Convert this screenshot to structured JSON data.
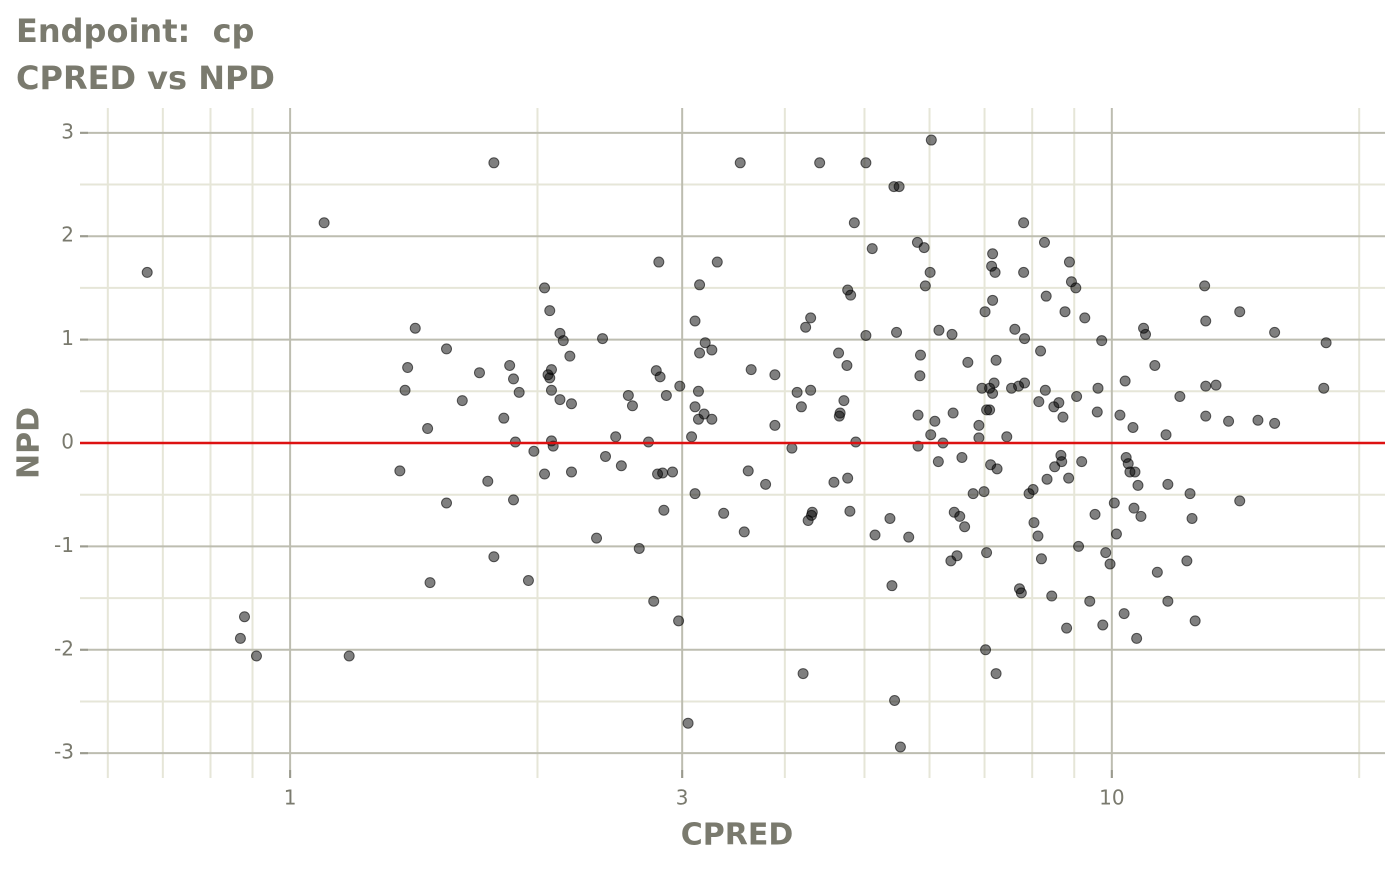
{
  "chart_data": {
    "type": "scatter",
    "title": "Endpoint:  cp",
    "subtitle": "CPRED vs NPD",
    "x_label": "CPRED",
    "y_label": "NPD",
    "xlog": true,
    "xlim": [
      0.555,
      21.5
    ],
    "ylim": [
      -3.24,
      3.24
    ],
    "xticks": [
      1,
      3,
      10
    ],
    "yticks": [
      -3,
      -2,
      -1,
      0,
      1,
      2,
      3
    ],
    "xminor": [
      0.6,
      0.7,
      0.8,
      0.9,
      2,
      4,
      5,
      6,
      7,
      8,
      9,
      20
    ],
    "yminor": [
      -2.5,
      -1.5,
      -0.5,
      0.5,
      1.5,
      2.5
    ],
    "grid": true,
    "color": "#000000",
    "opacity": 0.5,
    "hline": 0,
    "hline_color": "#dd1111",
    "x": [
      0.67,
      0.87,
      0.88,
      0.91,
      1.1,
      1.18,
      1.36,
      1.38,
      1.39,
      1.42,
      1.47,
      1.48,
      1.55,
      1.55,
      1.62,
      1.7,
      1.74,
      1.77,
      1.77,
      1.82,
      1.85,
      1.87,
      1.87,
      1.88,
      1.9,
      1.95,
      1.98,
      2.04,
      2.04,
      2.06,
      2.07,
      2.07,
      2.08,
      2.08,
      2.08,
      2.09,
      2.13,
      2.13,
      2.15,
      2.19,
      2.2,
      2.2,
      2.36,
      2.4,
      2.42,
      2.49,
      2.53,
      2.58,
      2.61,
      2.66,
      2.73,
      2.77,
      2.79,
      2.81,
      2.82,
      2.8,
      2.84,
      2.85,
      2.87,
      2.92,
      2.97,
      2.98,
      3.05,
      3.08,
      3.11,
      3.11,
      3.11,
      3.14,
      3.14,
      3.15,
      3.15,
      3.19,
      3.2,
      3.26,
      3.26,
      3.31,
      3.37,
      3.53,
      3.57,
      3.61,
      3.64,
      3.79,
      3.89,
      3.89,
      4.08,
      4.14,
      4.19,
      4.21,
      4.24,
      4.27,
      4.3,
      4.3,
      4.31,
      4.32,
      4.41,
      4.59,
      4.65,
      4.66,
      4.67,
      4.72,
      4.76,
      4.77,
      4.77,
      4.8,
      4.81,
      4.86,
      4.88,
      5.02,
      5.02,
      5.11,
      5.15,
      5.37,
      5.4,
      5.43,
      5.44,
      5.47,
      5.51,
      5.53,
      5.66,
      5.8,
      5.81,
      5.81,
      5.84,
      5.85,
      5.91,
      5.93,
      6.01,
      6.02,
      6.03,
      6.09,
      6.15,
      6.16,
      6.23,
      6.37,
      6.39,
      6.41,
      6.43,
      6.48,
      6.53,
      6.57,
      6.62,
      6.68,
      6.78,
      6.89,
      6.89,
      6.95,
      6.99,
      7.01,
      7.04,
      7.02,
      7.04,
      7.1,
      7.1,
      7.12,
      7.14,
      7.16,
      7.16,
      7.16,
      7.19,
      7.21,
      7.23,
      7.25,
      7.23,
      7.45,
      7.55,
      7.62,
      7.7,
      7.72,
      7.76,
      7.81,
      7.81,
      7.83,
      7.83,
      7.93,
      8.02,
      8.04,
      8.13,
      8.15,
      8.19,
      8.21,
      8.28,
      8.3,
      8.32,
      8.34,
      8.45,
      8.5,
      8.52,
      8.62,
      8.67,
      8.69,
      8.72,
      8.77,
      8.81,
      8.86,
      8.88,
      8.93,
      9.04,
      9.06,
      9.11,
      9.19,
      9.27,
      9.4,
      9.54,
      9.6,
      9.62,
      9.72,
      9.75,
      9.83,
      9.95,
      10.07,
      10.13,
      10.23,
      10.35,
      10.38,
      10.41,
      10.47,
      10.52,
      10.61,
      10.64,
      10.67,
      10.72,
      10.76,
      10.85,
      10.93,
      10.99,
      11.28,
      11.36,
      11.64,
      11.7,
      11.7,
      12.1,
      12.34,
      12.45,
      12.52,
      12.63,
      12.97,
      13.01,
      13.01,
      13.01,
      13.39,
      13.87,
      14.31,
      14.31,
      15.06,
      15.78,
      15.78,
      18.11,
      18.23
    ],
    "y": [
      1.65,
      -1.89,
      -1.68,
      -2.06,
      2.13,
      -2.06,
      -0.27,
      0.51,
      0.73,
      1.11,
      0.14,
      -1.35,
      0.91,
      -0.58,
      0.41,
      0.68,
      -0.37,
      2.71,
      -1.1,
      0.24,
      0.75,
      0.62,
      -0.55,
      0.01,
      0.49,
      -1.33,
      -0.08,
      1.5,
      -0.3,
      0.66,
      1.28,
      0.63,
      0.71,
      0.02,
      0.51,
      -0.03,
      1.06,
      0.42,
      0.99,
      0.84,
      0.38,
      -0.28,
      -0.92,
      1.01,
      -0.13,
      0.06,
      -0.22,
      0.46,
      0.36,
      -1.02,
      0.01,
      -1.53,
      0.7,
      1.75,
      0.64,
      -0.3,
      -0.29,
      -0.65,
      0.46,
      -0.28,
      -1.72,
      0.55,
      -2.71,
      0.06,
      1.18,
      -0.49,
      0.35,
      0.23,
      0.5,
      1.53,
      0.87,
      0.28,
      0.97,
      0.9,
      0.23,
      1.75,
      -0.68,
      2.71,
      -0.86,
      -0.27,
      0.71,
      -0.4,
      0.66,
      0.17,
      -0.05,
      0.49,
      0.35,
      -2.23,
      1.12,
      -0.75,
      1.21,
      0.51,
      -0.7,
      -0.67,
      2.71,
      -0.38,
      0.87,
      0.26,
      0.29,
      0.41,
      0.75,
      1.48,
      -0.34,
      -0.66,
      1.43,
      2.13,
      0.01,
      2.71,
      1.04,
      1.88,
      -0.89,
      -0.73,
      -1.38,
      2.48,
      -2.49,
      1.07,
      2.48,
      -2.94,
      -0.91,
      1.94,
      -0.03,
      0.27,
      0.65,
      0.85,
      1.89,
      1.52,
      1.65,
      0.08,
      2.93,
      0.21,
      -0.18,
      1.09,
      0.0,
      -1.14,
      1.05,
      0.29,
      -0.67,
      -1.09,
      -0.71,
      -0.14,
      -0.81,
      0.78,
      -0.49,
      0.17,
      0.05,
      0.53,
      -0.47,
      1.27,
      -1.06,
      -2.0,
      0.32,
      0.32,
      0.53,
      -0.21,
      1.71,
      1.83,
      1.38,
      0.48,
      0.58,
      1.65,
      0.8,
      -0.25,
      -2.23,
      0.06,
      0.53,
      1.1,
      0.55,
      -1.41,
      -1.45,
      2.13,
      1.65,
      1.01,
      0.58,
      -0.49,
      -0.45,
      -0.77,
      -0.9,
      0.4,
      0.89,
      -1.12,
      1.94,
      0.51,
      1.42,
      -0.35,
      -1.48,
      0.35,
      -0.23,
      0.39,
      -0.12,
      -0.18,
      0.25,
      1.27,
      -1.79,
      -0.34,
      1.75,
      1.56,
      1.5,
      0.45,
      -1.0,
      -0.18,
      1.21,
      -1.53,
      -0.69,
      0.3,
      0.53,
      0.99,
      -1.76,
      -1.06,
      -1.17,
      -0.58,
      -0.88,
      0.27,
      -1.65,
      0.6,
      -0.14,
      -0.2,
      -0.28,
      0.15,
      -0.63,
      -0.28,
      -1.89,
      -0.41,
      -0.71,
      1.11,
      1.05,
      0.75,
      -1.25,
      0.08,
      -0.4,
      -1.53,
      0.45,
      -1.14,
      -0.49,
      -0.73,
      -1.72,
      1.52,
      1.18,
      0.55,
      0.26,
      0.56,
      0.21,
      -0.56,
      1.27,
      0.22,
      1.07,
      0.19,
      0.53,
      0.97
    ]
  }
}
